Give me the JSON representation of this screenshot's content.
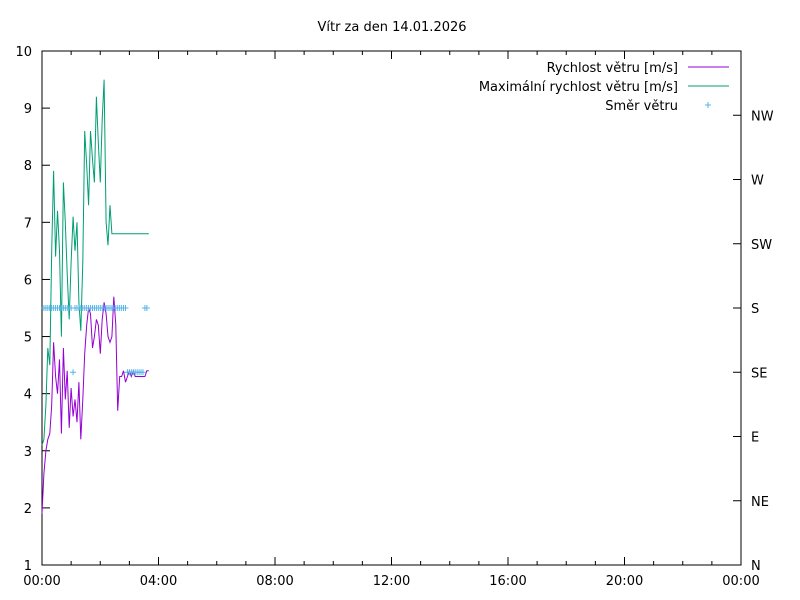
{
  "chart_data": {
    "type": "line",
    "title": "Vítr za den 14.01.2026",
    "xlabel": "",
    "ylabel": "",
    "xlim": [
      0,
      1440
    ],
    "ylim": [
      1,
      10
    ],
    "x_ticks": [
      {
        "value": 0,
        "label": "00:00"
      },
      {
        "value": 240,
        "label": "04:00"
      },
      {
        "value": 480,
        "label": "08:00"
      },
      {
        "value": 720,
        "label": "12:00"
      },
      {
        "value": 960,
        "label": "16:00"
      },
      {
        "value": 1200,
        "label": "20:00"
      },
      {
        "value": 1440,
        "label": "00:00"
      }
    ],
    "y_ticks": [
      1,
      2,
      3,
      4,
      5,
      6,
      7,
      8,
      9,
      10
    ],
    "y2_ticks": [
      {
        "value": 0,
        "label": "N"
      },
      {
        "value": 45,
        "label": "NE"
      },
      {
        "value": 90,
        "label": "E"
      },
      {
        "value": 135,
        "label": "SE"
      },
      {
        "value": 180,
        "label": "S"
      },
      {
        "value": 225,
        "label": "SW"
      },
      {
        "value": 270,
        "label": "W"
      },
      {
        "value": 315,
        "label": "NW"
      }
    ],
    "y2lim": [
      0,
      360
    ],
    "legend_position": "top-right",
    "series": [
      {
        "name": "Rychlost větru [m/s]",
        "color": "#9400d3",
        "style": "line",
        "axis": "y",
        "x": [
          0,
          4,
          8,
          12,
          16,
          20,
          24,
          28,
          32,
          36,
          40,
          44,
          48,
          52,
          56,
          60,
          64,
          68,
          72,
          76,
          80,
          84,
          88,
          92,
          96,
          100,
          104,
          108,
          112,
          116,
          120,
          124,
          128,
          132,
          136,
          140,
          144,
          148,
          152,
          156,
          160,
          164,
          168,
          172,
          176,
          180,
          184,
          188,
          192,
          196,
          200,
          204,
          208,
          212,
          216,
          220
        ],
        "y": [
          1.9,
          2.6,
          3.0,
          3.2,
          3.3,
          3.8,
          4.9,
          4.3,
          4.0,
          4.6,
          3.3,
          4.8,
          3.9,
          4.4,
          3.4,
          4.1,
          3.6,
          3.9,
          3.5,
          4.2,
          3.2,
          3.9,
          4.7,
          5.2,
          5.5,
          5.4,
          4.8,
          5.0,
          5.3,
          5.2,
          4.7,
          5.3,
          5.6,
          5.4,
          5.0,
          4.9,
          5.0,
          5.7,
          5.2,
          3.7,
          4.3,
          4.3,
          4.4,
          4.2,
          4.3,
          4.4,
          4.3,
          4.4,
          4.3,
          4.3,
          4.3,
          4.3,
          4.3,
          4.3,
          4.4,
          4.4
        ]
      },
      {
        "name": "Maximální rychlost větru [m/s]",
        "color": "#009e73",
        "style": "line",
        "axis": "y",
        "x": [
          0,
          4,
          8,
          12,
          16,
          20,
          24,
          28,
          32,
          36,
          40,
          44,
          48,
          52,
          56,
          60,
          64,
          68,
          72,
          76,
          80,
          84,
          88,
          92,
          96,
          100,
          104,
          108,
          112,
          116,
          120,
          124,
          128,
          132,
          136,
          140,
          144,
          148,
          152,
          156,
          160,
          164,
          168,
          172,
          176,
          180,
          184,
          188,
          192,
          196,
          200,
          204,
          208,
          212,
          216,
          220
        ],
        "y": [
          3.1,
          3.2,
          3.8,
          4.8,
          4.5,
          6.5,
          7.9,
          6.4,
          7.2,
          6.5,
          5.0,
          7.7,
          7.0,
          6.1,
          5.3,
          6.3,
          7.1,
          6.5,
          7.0,
          5.6,
          5.1,
          6.3,
          8.6,
          8.0,
          7.3,
          8.6,
          8.1,
          7.7,
          9.2,
          8.4,
          7.7,
          8.8,
          9.5,
          7.0,
          6.6,
          7.3,
          6.8,
          6.8,
          6.8,
          6.8,
          6.8,
          6.8,
          6.8,
          6.8,
          6.8,
          6.8,
          6.8,
          6.8,
          6.8,
          6.8,
          6.8,
          6.8,
          6.8,
          6.8,
          6.8,
          6.8
        ]
      },
      {
        "name": "Směr větru",
        "color": "#56b4e9",
        "style": "points",
        "axis": "y2",
        "x": [
          4,
          8,
          12,
          16,
          20,
          24,
          28,
          32,
          36,
          40,
          44,
          48,
          52,
          56,
          60,
          64,
          68,
          72,
          76,
          80,
          84,
          88,
          92,
          96,
          100,
          104,
          108,
          112,
          116,
          120,
          124,
          128,
          132,
          136,
          140,
          144,
          148,
          152,
          156,
          160,
          164,
          168,
          172,
          176,
          180,
          184,
          188,
          192,
          196,
          200,
          204,
          208,
          212,
          216
        ],
        "y": [
          180,
          180,
          180,
          180,
          180,
          180,
          180,
          180,
          180,
          180,
          180,
          180,
          180,
          180,
          180,
          135,
          180,
          180,
          180,
          180,
          180,
          180,
          180,
          180,
          180,
          180,
          180,
          180,
          180,
          180,
          180,
          180,
          180,
          180,
          180,
          180,
          180,
          180,
          180,
          180,
          180,
          180,
          180,
          135,
          135,
          135,
          135,
          135,
          135,
          135,
          135,
          135,
          180,
          180
        ]
      }
    ]
  }
}
